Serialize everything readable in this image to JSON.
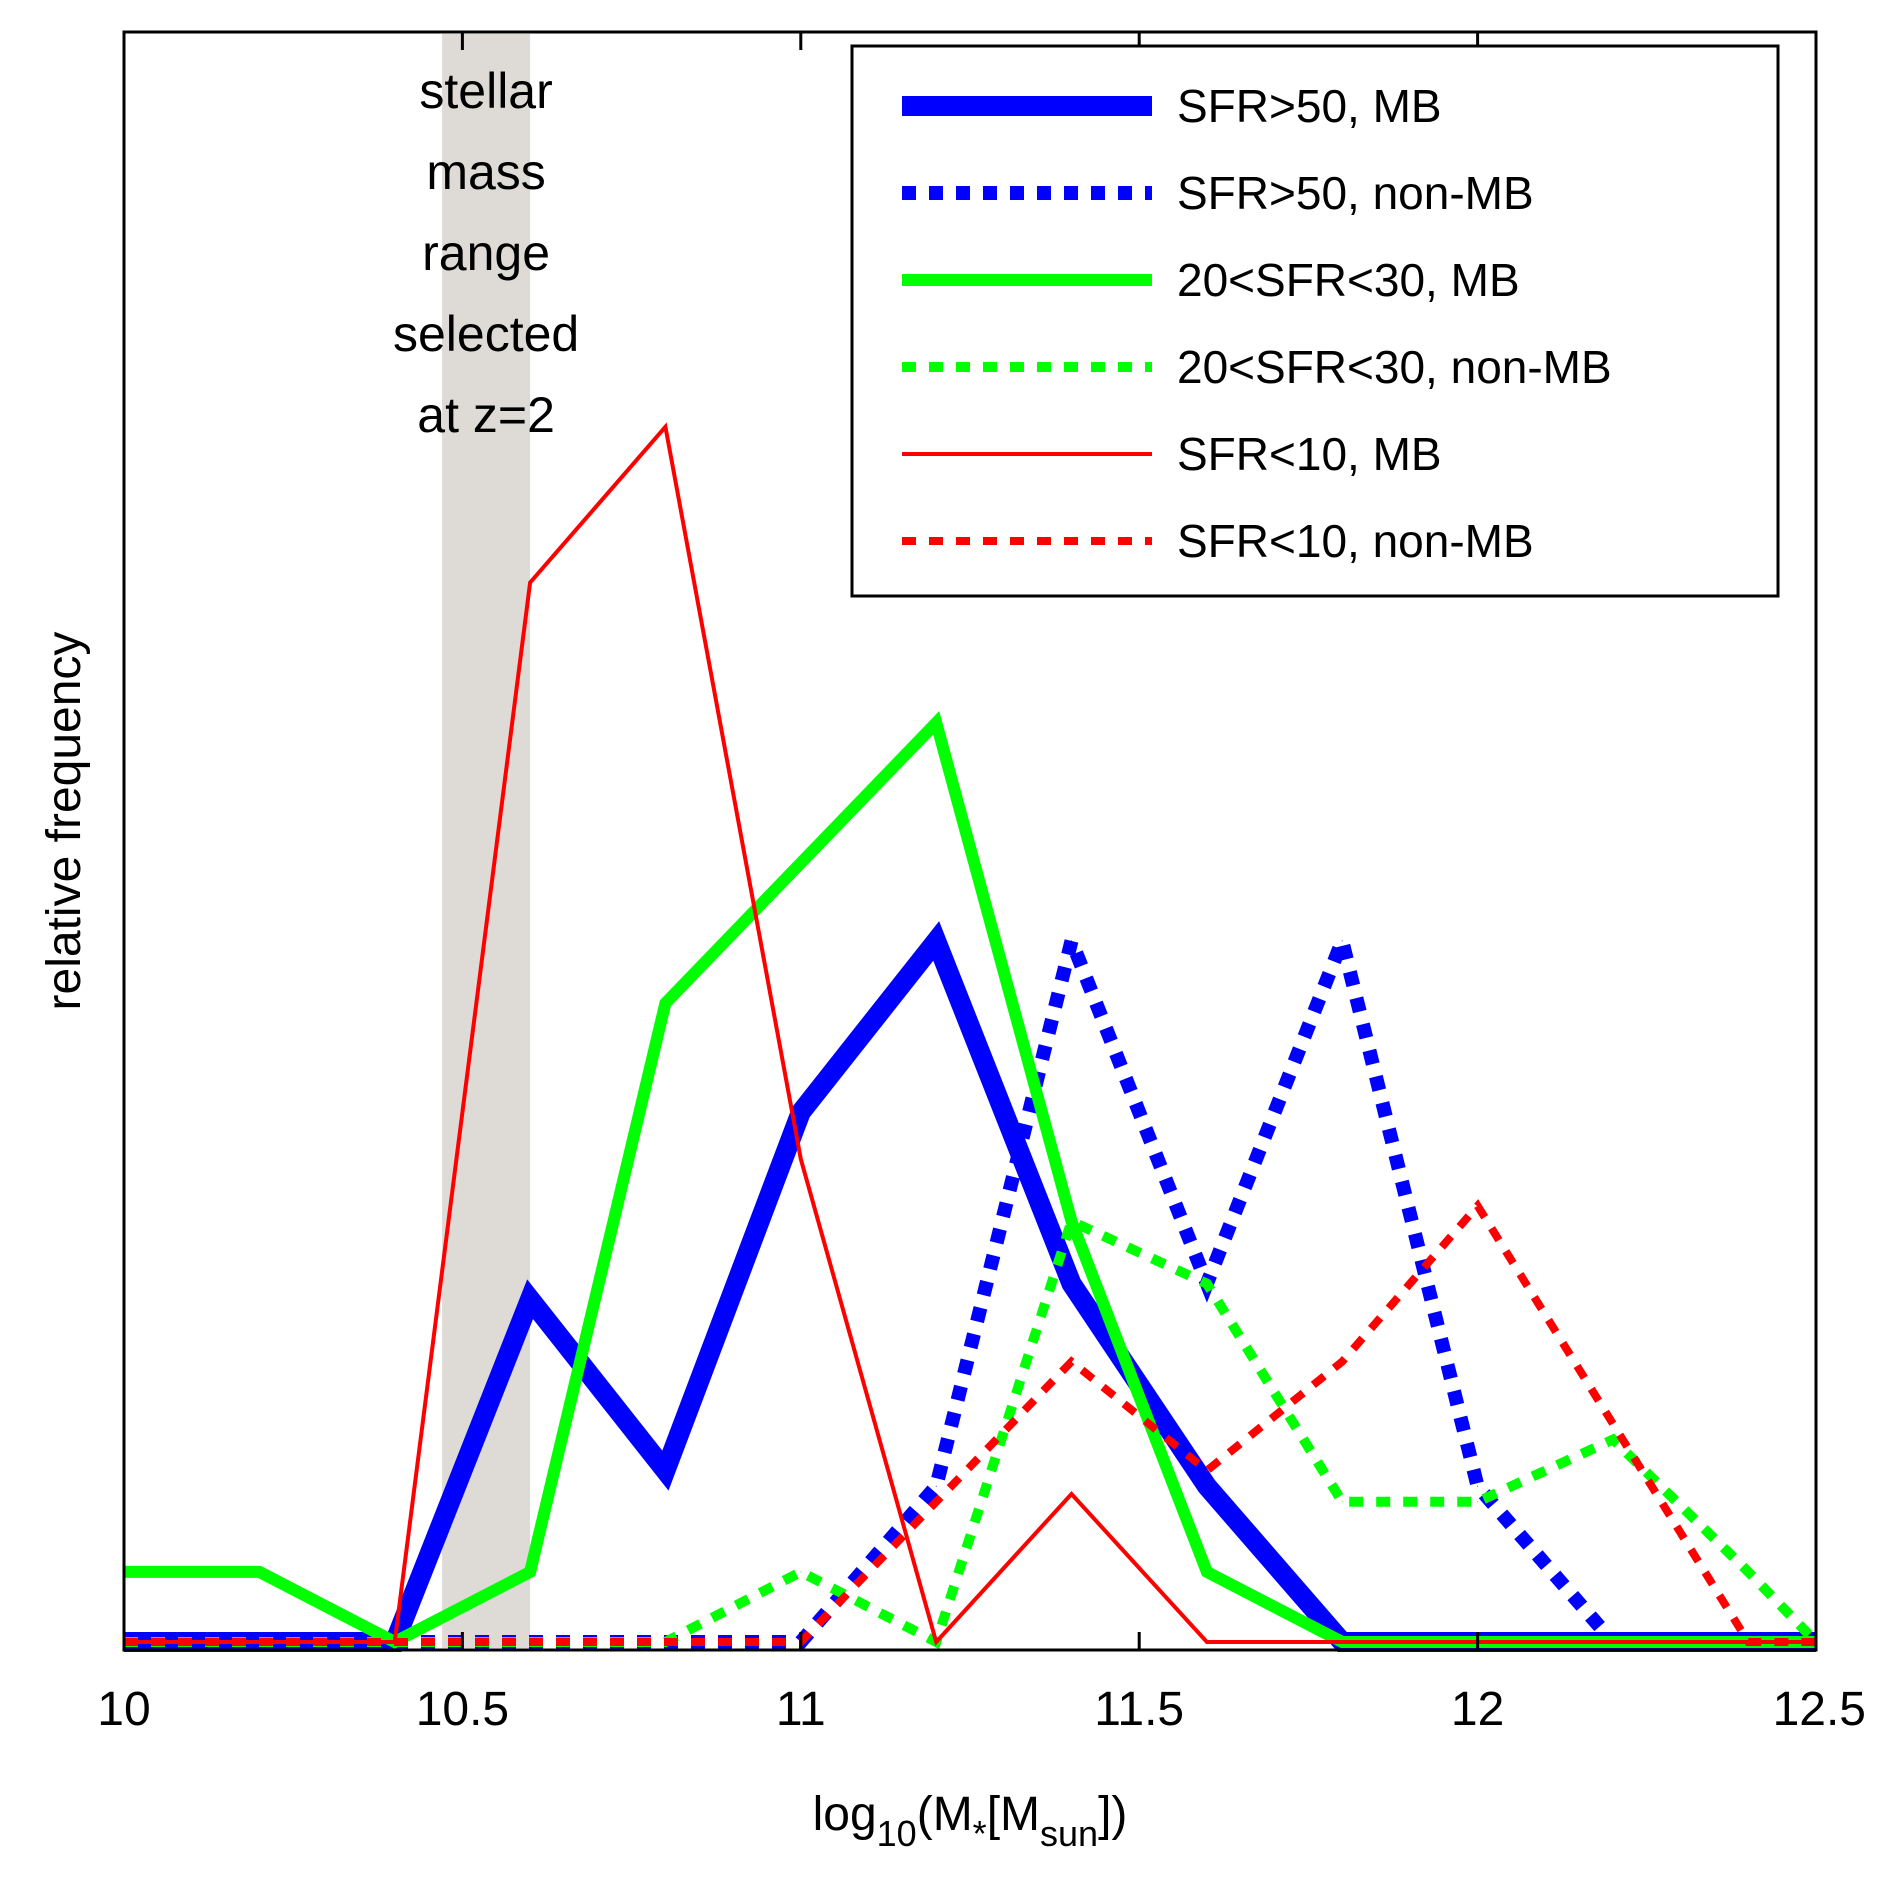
{
  "chart_data": {
    "type": "line",
    "title": "",
    "xlabel": {
      "base": "log",
      "sub1": "10",
      "mid": "(M",
      "star": "*",
      "mid2": "[M",
      "sub2": "sun",
      "end": "])"
    },
    "ylabel": "relative frequency",
    "xlim": [
      10,
      12.5
    ],
    "ylim": [
      0,
      1
    ],
    "x_ticks": [
      "10",
      "10.5",
      "11",
      "11.5",
      "12",
      "12.5"
    ],
    "grid": false,
    "legend_position": "top-right",
    "shaded_region": {
      "x": [
        10.47,
        10.6
      ],
      "color": "#d8d5cf"
    },
    "annotation": [
      "stellar",
      "mass",
      "range",
      "selected",
      "at z=2"
    ],
    "series": [
      {
        "name": "SFR>50, MB",
        "color": "#0000ff",
        "style": "solid",
        "width": 20,
        "x": [
          10,
          10.2,
          10.4,
          10.6,
          10.8,
          11,
          11.2,
          11.4,
          11.6,
          11.8,
          12,
          12.2,
          12.4,
          12.5
        ],
        "y": [
          0,
          0,
          0,
          0.22,
          0.11,
          0.34,
          0.45,
          0.23,
          0.1,
          0,
          0,
          0,
          0,
          0
        ]
      },
      {
        "name": "SFR>50, non-MB",
        "color": "#0000ff",
        "style": "dashed",
        "width": 14,
        "x": [
          10,
          10.2,
          10.4,
          10.6,
          10.8,
          11,
          11.2,
          11.4,
          11.6,
          11.8,
          12,
          12.2,
          12.4,
          12.5
        ],
        "y": [
          0,
          0,
          0,
          0,
          0,
          0,
          0.1,
          0.45,
          0.23,
          0.45,
          0.1,
          0,
          0,
          0
        ]
      },
      {
        "name": "20<SFR<30, MB",
        "color": "#00ff00",
        "style": "solid",
        "width": 12,
        "x": [
          10,
          10.2,
          10.4,
          10.6,
          10.8,
          11,
          11.2,
          11.4,
          11.6,
          11.8,
          12,
          12.2,
          12.4,
          12.5
        ],
        "y": [
          0.045,
          0.045,
          0,
          0.045,
          0.41,
          0.5,
          0.59,
          0.27,
          0.045,
          0,
          0,
          0,
          0,
          0
        ]
      },
      {
        "name": "20<SFR<30, non-MB",
        "color": "#00ff00",
        "style": "dashed",
        "width": 10,
        "x": [
          10,
          10.2,
          10.4,
          10.6,
          10.8,
          11,
          11.2,
          11.4,
          11.6,
          11.8,
          12,
          12.2,
          12.4,
          12.5
        ],
        "y": [
          0,
          0,
          0,
          0,
          0,
          0.045,
          0,
          0.27,
          0.23,
          0.09,
          0.09,
          0.13,
          0.045,
          0
        ]
      },
      {
        "name": "SFR<10, MB",
        "color": "#ff0000",
        "style": "solid",
        "width": 4,
        "x": [
          10,
          10.2,
          10.4,
          10.6,
          10.8,
          11,
          11.2,
          11.4,
          11.6,
          11.8,
          12,
          12.2,
          12.4,
          12.5
        ],
        "y": [
          0,
          0,
          0,
          0.68,
          0.78,
          0.31,
          0,
          0.095,
          0,
          0,
          0,
          0,
          0,
          0
        ]
      },
      {
        "name": "SFR<10, non-MB",
        "color": "#ff0000",
        "style": "dashed",
        "width": 8,
        "x": [
          10,
          10.2,
          10.4,
          10.6,
          10.8,
          11,
          11.2,
          11.4,
          11.6,
          11.8,
          12,
          12.2,
          12.4,
          12.5
        ],
        "y": [
          0,
          0,
          0,
          0,
          0,
          0,
          0.09,
          0.18,
          0.11,
          0.18,
          0.28,
          0.14,
          0,
          0
        ]
      }
    ]
  }
}
